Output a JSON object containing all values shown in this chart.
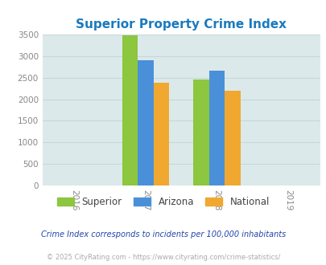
{
  "title": "Superior Property Crime Index",
  "title_color": "#1a7abf",
  "years": [
    2017,
    2018
  ],
  "x_ticks": [
    2016,
    2017,
    2018,
    2019
  ],
  "series": {
    "Superior": [
      3480,
      2460
    ],
    "Arizona": [
      2900,
      2670
    ],
    "National": [
      2380,
      2200
    ]
  },
  "colors": {
    "Superior": "#8dc63f",
    "Arizona": "#4a90d9",
    "National": "#f0a830"
  },
  "ylim": [
    0,
    3500
  ],
  "yticks": [
    0,
    500,
    1000,
    1500,
    2000,
    2500,
    3000,
    3500
  ],
  "background_color": "#dce9ea",
  "legend_labels": [
    "Superior",
    "Arizona",
    "National"
  ],
  "footnote1": "Crime Index corresponds to incidents per 100,000 inhabitants",
  "footnote2": "© 2025 CityRating.com - https://www.cityrating.com/crime-statistics/",
  "bar_width": 0.22,
  "xlim": [
    2015.55,
    2019.45
  ],
  "grid_color": "#c5d8d8",
  "tick_color": "#888888",
  "footnote1_color": "#2244aa",
  "footnote2_color": "#aaaaaa"
}
